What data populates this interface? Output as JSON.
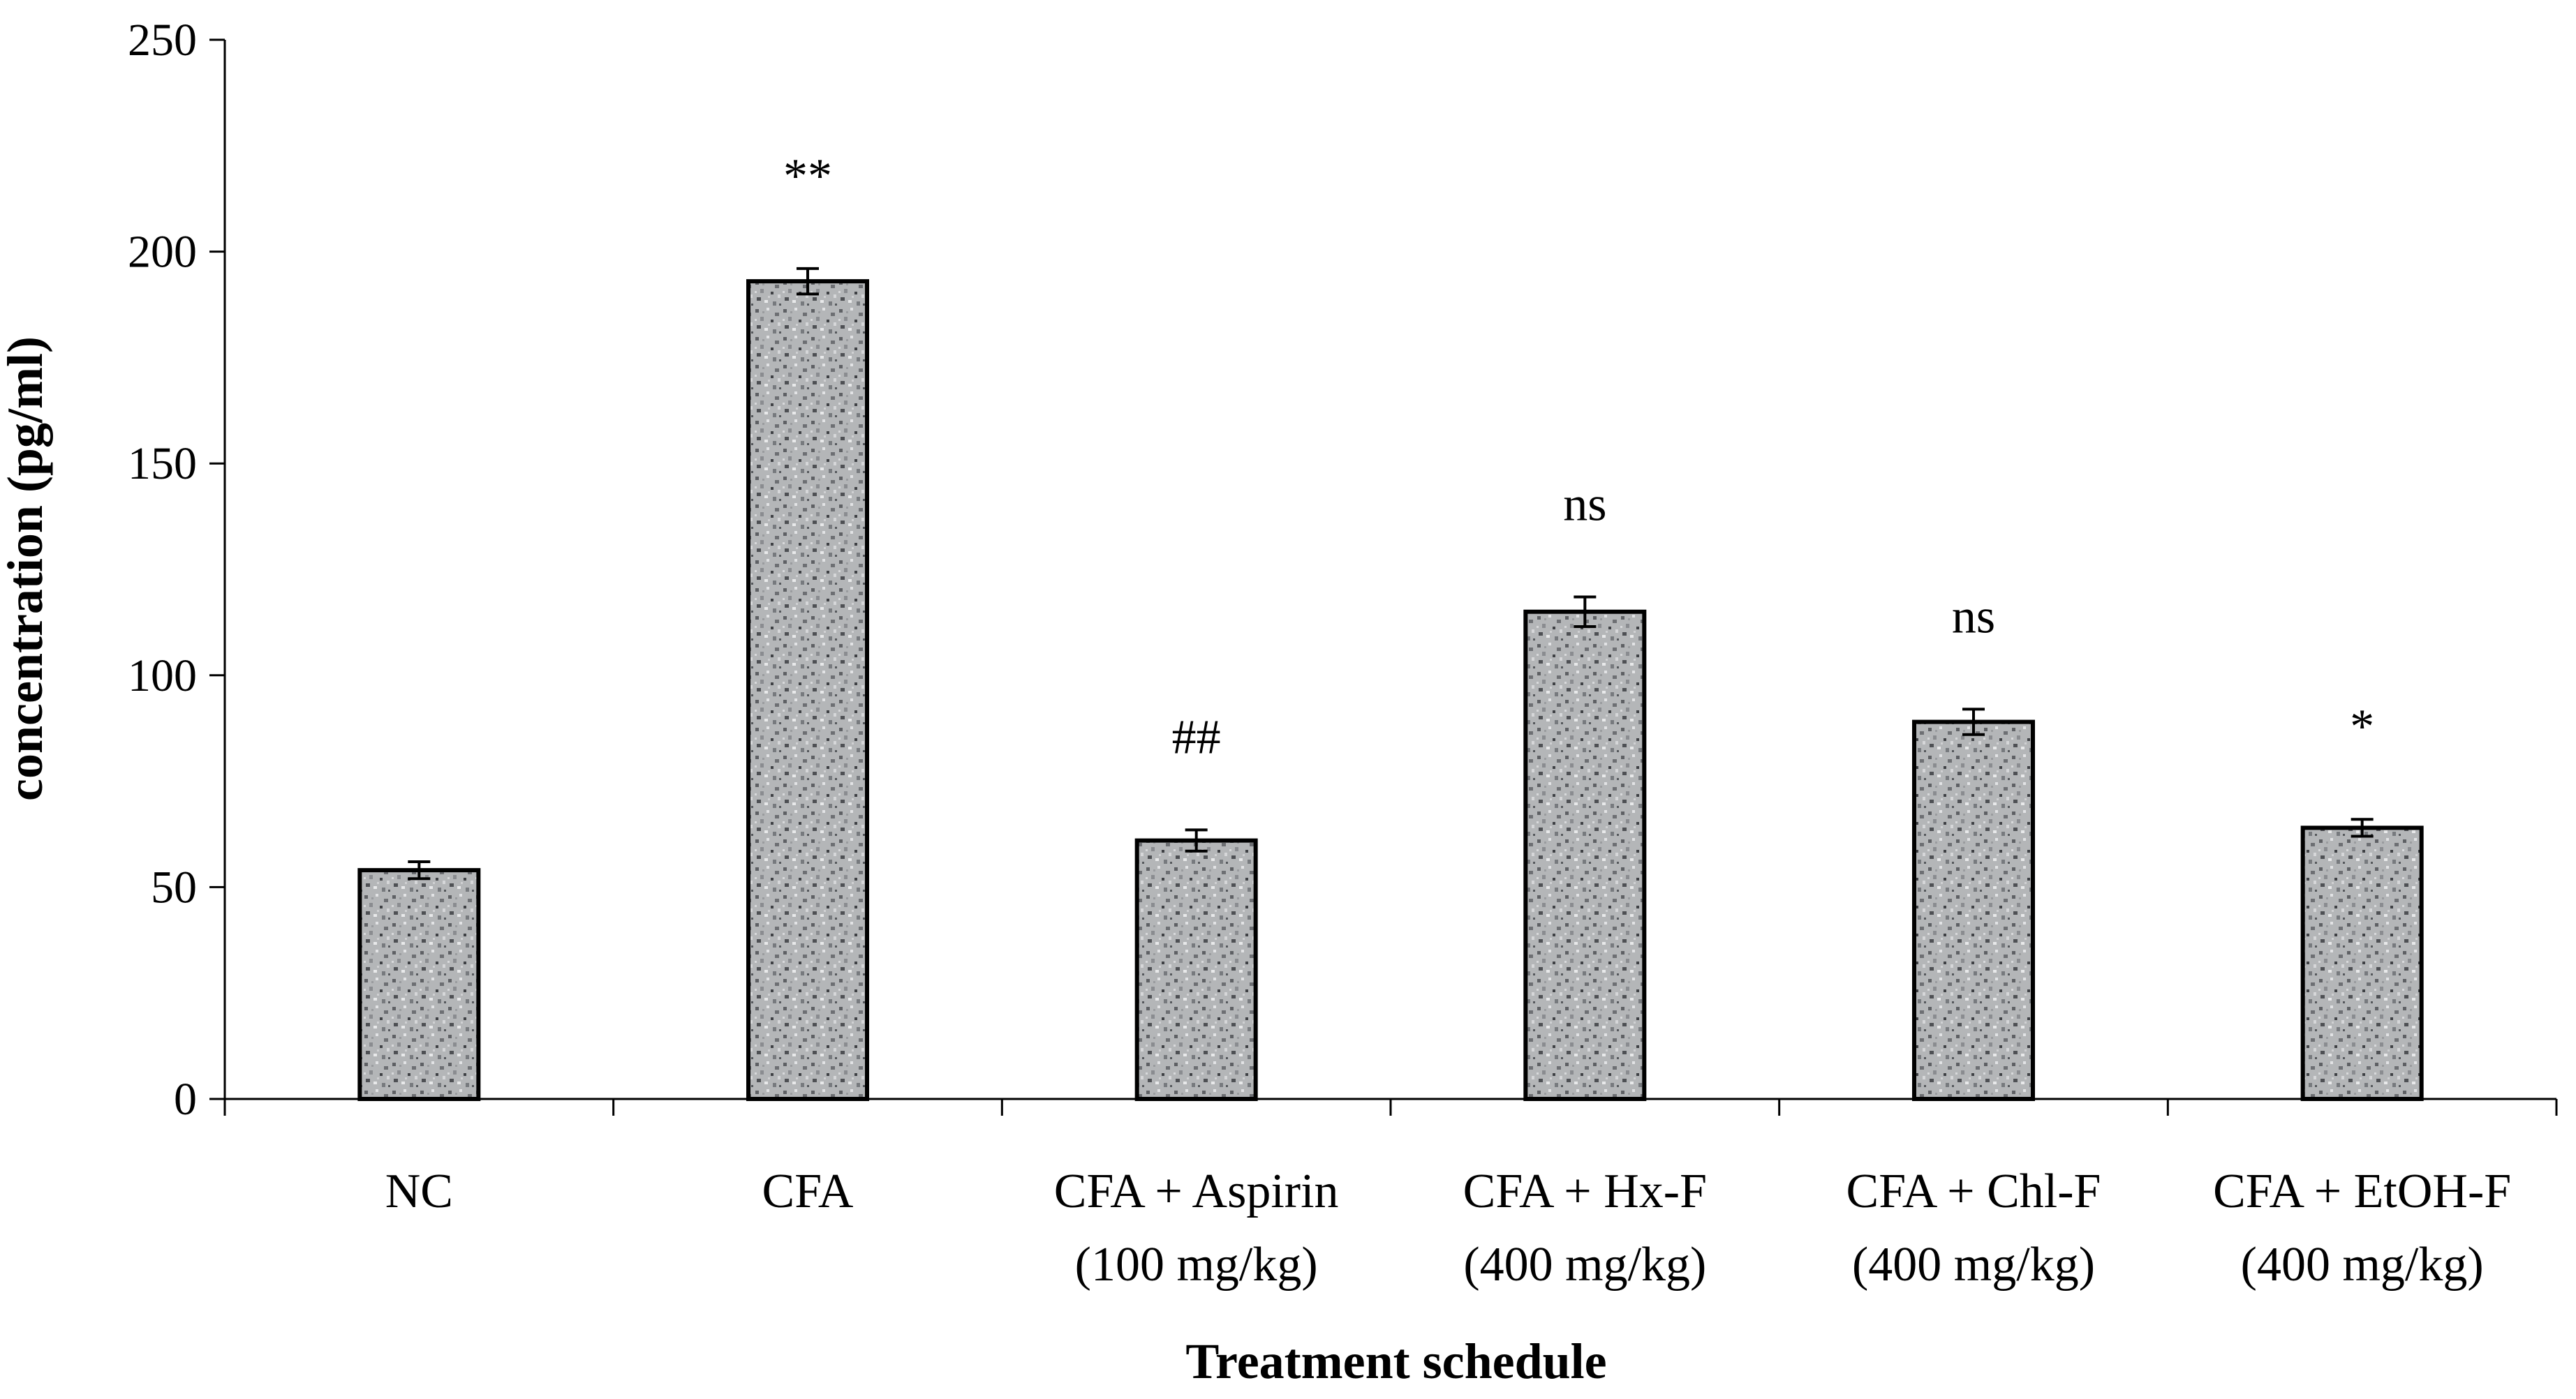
{
  "chart_data": {
    "type": "bar",
    "title": "",
    "xlabel": "Treatment schedule",
    "ylabel": "concentration (pg/ml)",
    "ylim": [
      0,
      250
    ],
    "yticks": [
      0,
      50,
      100,
      150,
      200,
      250
    ],
    "grid": false,
    "legend": "none",
    "categories": [
      [
        "NC"
      ],
      [
        "CFA"
      ],
      [
        "CFA + Aspirin",
        "(100 mg/kg)"
      ],
      [
        "CFA + Hx-F",
        "(400 mg/kg)"
      ],
      [
        "CFA + Chl-F",
        "(400 mg/kg)"
      ],
      [
        "CFA + EtOH-F",
        "(400 mg/kg)"
      ]
    ],
    "values": [
      54,
      193,
      61,
      115,
      89,
      64
    ],
    "errors": [
      2,
      3,
      2.5,
      3.5,
      3,
      2
    ],
    "annotations": [
      "",
      "**",
      "##",
      "ns",
      "ns",
      "*"
    ],
    "bar_fill": "#a9abad"
  }
}
